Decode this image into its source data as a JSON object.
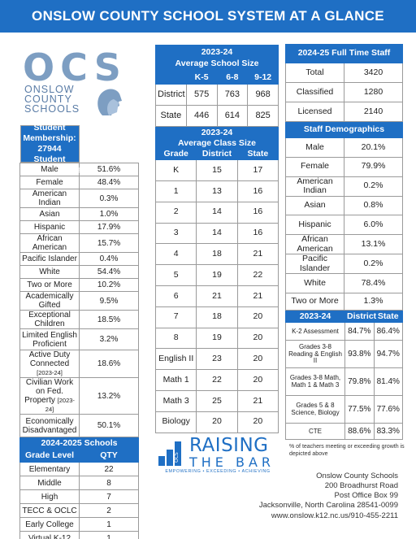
{
  "title": "ONSLOW COUNTY SCHOOL SYSTEM AT A GLANCE",
  "logo": {
    "letters": "OCS",
    "line1": "ONSLOW",
    "line2": "COUNTY",
    "line3": "SCHOOLS"
  },
  "student": {
    "header_line1": "2024-25 Student Membership:",
    "header_line2": "27944",
    "header_line3": "Student Demographics",
    "rows": [
      {
        "label": "Male",
        "value": "51.6%"
      },
      {
        "label": "Female",
        "value": "48.4%"
      },
      {
        "label": "American Indian",
        "value": "0.3%"
      },
      {
        "label": "Asian",
        "value": "1.0%"
      },
      {
        "label": "Hispanic",
        "value": "17.9%"
      },
      {
        "label": "African American",
        "value": "15.7%"
      },
      {
        "label": "Pacific Islander",
        "value": "0.4%"
      },
      {
        "label": "White",
        "value": "54.4%"
      },
      {
        "label": "Two or More",
        "value": "10.2%"
      },
      {
        "label": "Academically Gifted",
        "value": "9.5%"
      },
      {
        "label": "Exceptional Children",
        "value": "18.5%"
      },
      {
        "label": "Limited English Proficient",
        "value": "3.2%"
      },
      {
        "label": "Active Duty Connected",
        "note": "[2023-24]",
        "value": "18.6%"
      },
      {
        "label": "Civilian Work on Fed. Property",
        "note": "[2023-24]",
        "value": "13.2%"
      },
      {
        "label": "Economically Disadvantaged",
        "value": "50.1%"
      }
    ]
  },
  "schools": {
    "header": "2024-2025 Schools",
    "col_grade": "Grade Level",
    "col_qty": "QTY",
    "rows": [
      {
        "label": "Elementary",
        "value": "22"
      },
      {
        "label": "Middle",
        "value": "8"
      },
      {
        "label": "High",
        "value": "7"
      },
      {
        "label": "TECC & OCLC",
        "value": "2"
      },
      {
        "label": "Early College",
        "value": "1"
      },
      {
        "label": "Virtual K-12",
        "value": "1"
      },
      {
        "label": "Regional Skills Ctr",
        "value": "1"
      }
    ]
  },
  "school_size": {
    "header_line1": "2023-24",
    "header_line2": "Average School Size",
    "cols": [
      "K-5",
      "6-8",
      "9-12"
    ],
    "rows": [
      {
        "label": "District",
        "values": [
          "575",
          "763",
          "968"
        ]
      },
      {
        "label": "State",
        "values": [
          "446",
          "614",
          "825"
        ]
      }
    ]
  },
  "class_size": {
    "header_line1": "2023-24",
    "header_line2": "Average Class Size",
    "col_grade": "Grade",
    "col_district": "District",
    "col_state": "State",
    "rows": [
      {
        "label": "K",
        "district": "15",
        "state": "17"
      },
      {
        "label": "1",
        "district": "13",
        "state": "16"
      },
      {
        "label": "2",
        "district": "14",
        "state": "16"
      },
      {
        "label": "3",
        "district": "14",
        "state": "16"
      },
      {
        "label": "4",
        "district": "18",
        "state": "21"
      },
      {
        "label": "5",
        "district": "19",
        "state": "22"
      },
      {
        "label": "6",
        "district": "21",
        "state": "21"
      },
      {
        "label": "7",
        "district": "18",
        "state": "20"
      },
      {
        "label": "8",
        "district": "19",
        "state": "20"
      },
      {
        "label": "English II",
        "district": "23",
        "state": "20"
      },
      {
        "label": "Math 1",
        "district": "22",
        "state": "20"
      },
      {
        "label": "Math 3",
        "district": "25",
        "state": "21"
      },
      {
        "label": "Biology",
        "district": "20",
        "state": "20"
      }
    ]
  },
  "staff": {
    "header": "2024-25 Full Time Staff",
    "rows": [
      {
        "label": "Total",
        "value": "3420"
      },
      {
        "label": "Classified",
        "value": "1280"
      },
      {
        "label": "Licensed",
        "value": "2140"
      }
    ]
  },
  "staff_demo": {
    "header": "Staff Demographics",
    "rows": [
      {
        "label": "Male",
        "value": "20.1%"
      },
      {
        "label": "Female",
        "value": "79.9%"
      },
      {
        "label": "American Indian",
        "value": "0.2%"
      },
      {
        "label": "Asian",
        "value": "0.8%"
      },
      {
        "label": "Hispanic",
        "value": "6.0%"
      },
      {
        "label": "African American",
        "value": "13.1%"
      },
      {
        "label": "Pacific Islander",
        "value": "0.2%"
      },
      {
        "label": "White",
        "value": "78.4%"
      },
      {
        "label": "Two or More",
        "value": "1.3%"
      }
    ]
  },
  "assessment": {
    "col_year": "2023-24",
    "col_district": "District",
    "col_state": "State",
    "rows": [
      {
        "label": "K-2 Assessment",
        "district": "84.7%",
        "state": "86.4%"
      },
      {
        "label": "Grades 3-8 Reading & English II",
        "district": "93.8%",
        "state": "94.7%"
      },
      {
        "label": "Grades 3-8 Math, Math 1 & Math 3",
        "district": "79.8%",
        "state": "81.4%"
      },
      {
        "label": "Grades 5 & 8 Science, Biology",
        "district": "77.5%",
        "state": "77.6%"
      },
      {
        "label": "CTE",
        "district": "88.6%",
        "state": "83.3%"
      }
    ]
  },
  "raising": {
    "line1": "RAISING",
    "line2": "THE BAR",
    "tagline": "EMPOWERING • EXCEEDING • ACHIEVING",
    "side": "OCS"
  },
  "footnote": "% of teachers meeting or exceeding growth is depicted above",
  "address": {
    "line1": "Onslow County Schools",
    "line2": "200 Broadhurst Road",
    "line3": "Post Office Box 99",
    "line4": "Jacksonville, North Carolina 28541-0099",
    "line5": "www.onslow.k12.nc.us/910-455-2211"
  },
  "colors": {
    "accent": "#1f6fc4",
    "logo": "#7d9ec2"
  }
}
